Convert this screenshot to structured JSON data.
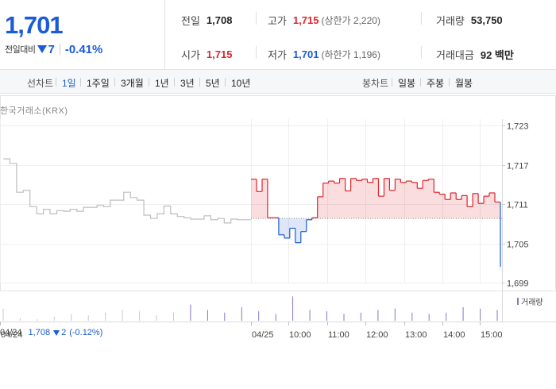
{
  "summary": {
    "current_price": "1,701",
    "change_label": "전일대비",
    "change_value": "7",
    "change_rate": "-0.41%",
    "prev_close_label": "전일",
    "prev_close": "1,708",
    "high_label": "고가",
    "high": "1,715",
    "upper_limit": "(상한가 2,220)",
    "volume_label": "거래량",
    "volume": "53,750",
    "open_label": "시가",
    "open": "1,715",
    "low_label": "저가",
    "low": "1,701",
    "lower_limit": "(하한가 1,196)",
    "amount_label": "거래대금",
    "amount": "92 백만"
  },
  "toolbar": {
    "line_chart_label": "선차트",
    "periods": [
      "1일",
      "1주일",
      "3개월",
      "1년",
      "3년",
      "5년",
      "10년"
    ],
    "active_period": "1일",
    "candle_label": "봉차트",
    "candle_periods": [
      "일봉",
      "주봉",
      "월봉"
    ]
  },
  "market_label": "한국거래소(KRX)",
  "volume_legend": "거래량",
  "prev_day_info": {
    "date": "04/24",
    "price": "1,708",
    "change": "2",
    "rate": "(-0.12%)"
  },
  "colors": {
    "up": "#e0232a",
    "down": "#1b5bd6",
    "prev_day": "#bdbdbd",
    "volume": "#8b73c7"
  },
  "chart_data": {
    "type": "line",
    "y_ticks": [
      "1,723",
      "1,717",
      "1,711",
      "1,705",
      "1,699"
    ],
    "ylim": [
      1699,
      1723
    ],
    "x_ticks": [
      "04/24",
      "04/25",
      "10:00",
      "11:00",
      "12:00",
      "13:00",
      "14:00",
      "15:00"
    ],
    "reference_price": 1708.8,
    "grid": true,
    "series": [
      {
        "values": [
          1717.9,
          1717.2,
          1712.8,
          1713.1,
          1710.6,
          1709.5,
          1710.2,
          1709.5,
          1710.0,
          1709.9,
          1710.2,
          1709.9,
          1710.5,
          1710.5,
          1710.8,
          1710.6,
          1711.6,
          1711.6,
          1712.8,
          1712.0,
          1711.6,
          1709.3,
          1708.8,
          1709.5,
          1710.7,
          1709.5,
          1709.1,
          1708.9,
          1708.7,
          1708.7,
          1709.2,
          1708.6,
          1708.8,
          1708.1,
          1708.7,
          1708.6,
          1708.6,
          1708.6
        ]
      },
      {
        "values": [
          1714.8,
          1712.9,
          1714.8,
          1708.9,
          1708.9,
          1706.3,
          1705.8,
          1707.3,
          1705.1,
          1706.8,
          1708.6,
          1708.9,
          1712.1,
          1714.2,
          1714.5,
          1714.2,
          1714.9,
          1713.0,
          1714.9,
          1714.6,
          1714.8,
          1714.3,
          1714.9,
          1712.2,
          1714.9,
          1713.1,
          1714.8,
          1714.3,
          1714.5,
          1714.3,
          1713.4,
          1714.6,
          1714.8,
          1712.8,
          1712.5,
          1711.7,
          1712.7,
          1711.7,
          1712.3,
          1710.6,
          1712.6,
          1711.1,
          1712.2,
          1712.7,
          1711.3,
          1701.4
        ]
      }
    ],
    "volume_values": [
      0.45,
      0.1,
      0.05,
      0.15,
      0.25,
      0.2,
      0.3,
      0.4,
      0.35,
      0.2,
      0.3,
      0.6,
      0.4,
      0.3,
      0.5,
      0.35,
      0.25,
      0.9,
      0.4,
      0.35,
      0.25,
      0.3,
      0.4,
      0.45,
      0.3,
      0.25,
      0.3,
      0.5,
      0.45,
      0.4
    ]
  }
}
